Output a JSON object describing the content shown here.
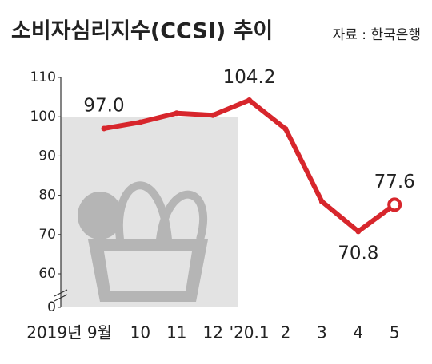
{
  "chart_data": {
    "type": "line",
    "title": "소비자심리지수(CCSI) 추이",
    "source": "자료 : 한국은행",
    "categories": [
      "2019년 9월",
      "10",
      "11",
      "12",
      "'20.1",
      "2",
      "3",
      "4",
      "5"
    ],
    "series": [
      {
        "name": "CCSI",
        "color": "#d7262c",
        "values": [
          97.0,
          98.6,
          100.9,
          100.4,
          104.2,
          96.9,
          78.4,
          70.8,
          77.6
        ],
        "value_labels": [
          "97.0",
          null,
          null,
          null,
          "104.2",
          null,
          null,
          "70.8",
          "77.6"
        ]
      }
    ],
    "ylim": [
      0,
      110
    ],
    "yticks": [
      0,
      60,
      70,
      80,
      90,
      100,
      110
    ],
    "y_break": [
      0,
      60
    ]
  }
}
